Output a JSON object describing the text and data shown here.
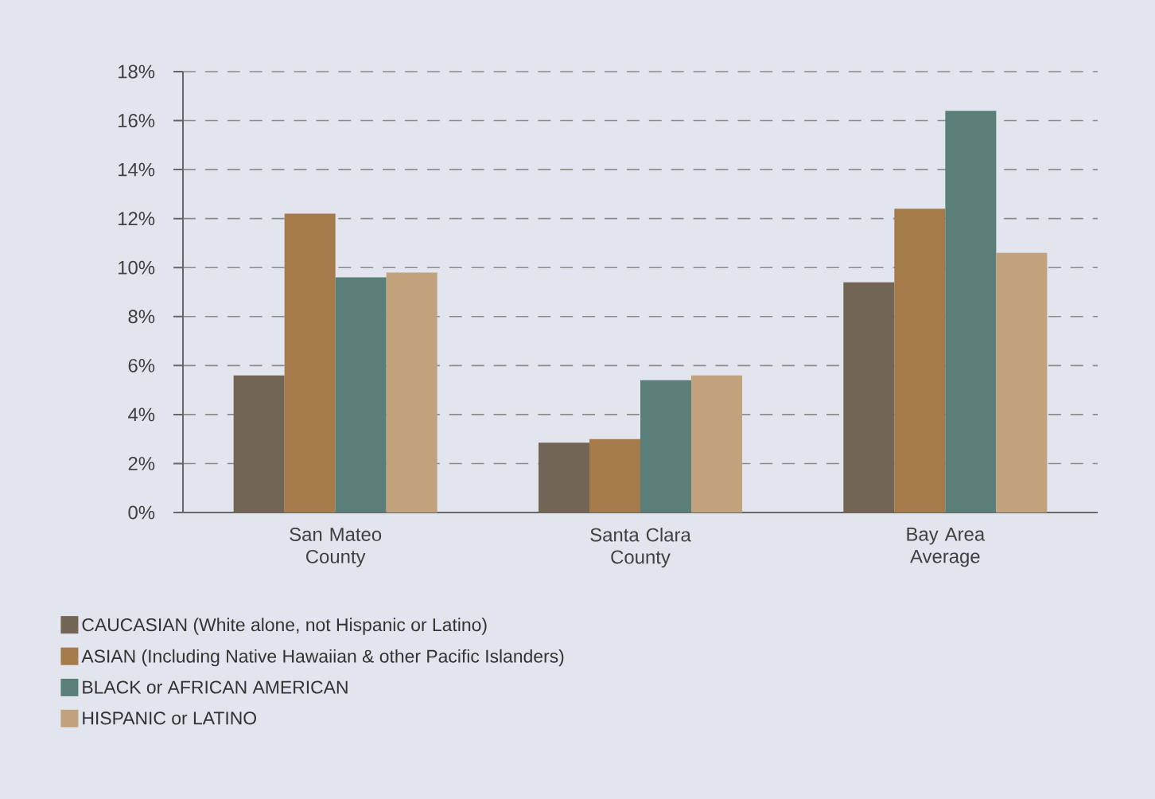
{
  "chart_data": {
    "type": "bar",
    "categories": [
      "San Mateo County",
      "Santa Clara County",
      "Bay Area Average"
    ],
    "series": [
      {
        "name": "CAUCASIAN (White alone, not Hispanic or Latino)",
        "color": "#736555",
        "values": [
          5.6,
          2.85,
          9.4
        ]
      },
      {
        "name": "ASIAN (Including Native Hawaiian & other Pacific Islanders)",
        "color": "#a57b4c",
        "values": [
          12.2,
          3.0,
          12.4
        ]
      },
      {
        "name": "BLACK or AFRICAN AMERICAN",
        "color": "#5a7f78",
        "values": [
          9.6,
          5.4,
          16.4
        ]
      },
      {
        "name": "HISPANIC or LATINO",
        "color": "#c2a17d",
        "values": [
          9.8,
          5.6,
          10.6
        ]
      }
    ],
    "ylim": [
      0,
      18
    ],
    "yticks": [
      {
        "value": 0,
        "label": "0%"
      },
      {
        "value": 2,
        "label": "2%"
      },
      {
        "value": 4,
        "label": "4%"
      },
      {
        "value": 6,
        "label": "6%"
      },
      {
        "value": 8,
        "label": "8%"
      },
      {
        "value": 10,
        "label": "10%"
      },
      {
        "value": 12,
        "label": "12%"
      },
      {
        "value": 14,
        "label": "14%"
      },
      {
        "value": 16,
        "label": "16%"
      },
      {
        "value": 18,
        "label": "18%"
      }
    ],
    "grid": "y",
    "legend": "bottom"
  }
}
